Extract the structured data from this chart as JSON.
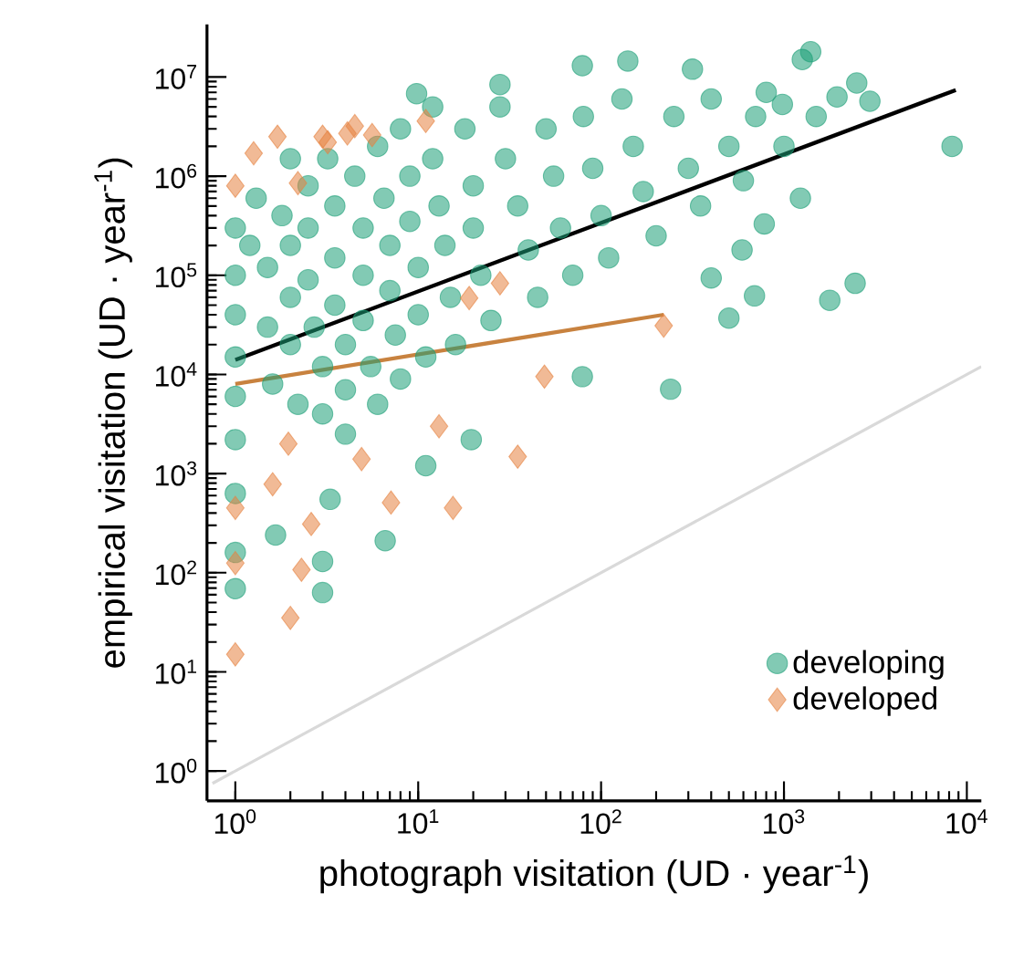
{
  "chart_data": {
    "type": "scatter",
    "xlabel": "photograph visitation (UD · year$^{-1}$)",
    "ylabel": "empirical visitation (UD · year$^{-1}$)",
    "log": "xy",
    "xlim": [
      0.7,
      12000
    ],
    "ylim": [
      0.5,
      34000000
    ],
    "xticks": [
      {
        "value": 1,
        "label": "10$^{0}$"
      },
      {
        "value": 10,
        "label": "10$^{1}$"
      },
      {
        "value": 100,
        "label": "10$^{2}$"
      },
      {
        "value": 1000,
        "label": "10$^{3}$"
      },
      {
        "value": 10000,
        "label": "10$^{4}$"
      }
    ],
    "yticks": [
      {
        "value": 1,
        "label": "10$^{0}$"
      },
      {
        "value": 10,
        "label": "10$^{1}$"
      },
      {
        "value": 100,
        "label": "10$^{2}$"
      },
      {
        "value": 1000,
        "label": "10$^{3}$"
      },
      {
        "value": 10000,
        "label": "10$^{4}$"
      },
      {
        "value": 100000,
        "label": "10$^{5}$"
      },
      {
        "value": 1000000,
        "label": "10$^{6}$"
      },
      {
        "value": 10000000,
        "label": "10$^{7}$"
      }
    ],
    "grid": false,
    "legend": "bottom right",
    "series": [
      {
        "type": "line",
        "color": "#d9d9d9",
        "marker": "none",
        "x": [
          0.75,
          12000
        ],
        "values": [
          0.75,
          12000
        ]
      },
      {
        "name": "developing",
        "color": "#1b9e77",
        "marker": "circle",
        "x": [
          79,
          140,
          1400,
          1260,
          8300,
          2500,
          1950,
          2950,
          2450,
          1780,
          690,
          500,
          240,
          28,
          9.8,
          1230,
          780,
          590,
          400,
          980,
          316,
          6.6,
          3,
          3,
          1,
          1,
          1.66,
          3.3,
          11,
          19.5,
          79,
          1,
          1,
          1,
          1,
          1,
          1,
          1,
          1.2,
          1.3,
          1.5,
          1.5,
          1.6,
          1.8,
          2,
          2,
          2,
          2,
          2.2,
          2.5,
          2.5,
          2.5,
          2.7,
          3,
          3,
          3.2,
          3.5,
          3.5,
          3.5,
          4,
          4,
          4,
          4.5,
          5,
          5,
          5,
          5.5,
          6,
          6,
          6.5,
          7,
          7,
          7.5,
          8,
          8,
          9,
          9,
          10,
          10,
          11,
          12,
          12,
          13,
          14,
          15,
          16,
          18,
          20,
          20,
          22,
          25,
          28,
          30,
          35,
          40,
          45,
          50,
          55,
          60,
          70,
          80,
          90,
          100,
          110,
          130,
          150,
          170,
          200,
          250,
          300,
          350,
          400,
          500,
          600,
          700,
          1000,
          1500,
          800
        ],
        "values": [
          13000000,
          14500000,
          18000000,
          15000000,
          2000000,
          8700000,
          6300000,
          5700000,
          83000,
          56000,
          62000,
          37000,
          7100,
          8400000,
          6800000,
          600000,
          330000,
          180000,
          94000,
          5300000,
          12000000,
          210,
          63,
          130,
          69,
          160,
          240,
          550,
          1200,
          2200,
          9500,
          630,
          2200,
          300000,
          100000,
          40000,
          15000,
          6000,
          200000,
          600000,
          120000,
          30000,
          8000,
          400000,
          1500000,
          200000,
          60000,
          20000,
          5000,
          800000,
          300000,
          90000,
          30000,
          12000,
          4000,
          1500000,
          500000,
          150000,
          50000,
          20000,
          7000,
          2500,
          1000000,
          300000,
          100000,
          35000,
          12000,
          5000,
          2000000,
          600000,
          200000,
          70000,
          25000,
          9000,
          3000000,
          1000000,
          350000,
          120000,
          40000,
          15000,
          5000000,
          1500000,
          500000,
          200000,
          60000,
          20000,
          3000000,
          800000,
          300000,
          100000,
          35000,
          5000000,
          1500000,
          500000,
          180000,
          60000,
          3000000,
          1000000,
          300000,
          100000,
          4000000,
          1200000,
          400000,
          150000,
          6000000,
          2000000,
          700000,
          250000,
          4000000,
          1200000,
          500000,
          6000000,
          2000000,
          900000,
          4000000,
          2000000,
          4000000,
          7000000
        ]
      },
      {
        "name": "developed",
        "color": "#e6823f",
        "marker": "diamond",
        "x": [
          1.26,
          1.7,
          3.0,
          3.2,
          4.1,
          4.5,
          5.6,
          11,
          2.2,
          1,
          28,
          220,
          49,
          19,
          13,
          35,
          4.9,
          7.1,
          15.5,
          1.6,
          1,
          2.6,
          1,
          2.3,
          2,
          1,
          1.95
        ],
        "values": [
          1700000,
          2500000,
          2500000,
          2200000,
          2700000,
          3200000,
          2600000,
          3600000,
          850000,
          800000,
          83000,
          31000,
          9500,
          59000,
          3000,
          1480,
          1400,
          510,
          450,
          780,
          450,
          310,
          125,
          107,
          35,
          15,
          2000
        ]
      },
      {
        "type": "line",
        "color": "#000000",
        "marker": "none",
        "x": [
          1,
          8700
        ],
        "values": [
          14000,
          7400000
        ]
      },
      {
        "type": "line",
        "color": "#c8823f",
        "marker": "none",
        "x": [
          1,
          220
        ],
        "values": [
          8000,
          40000
        ]
      }
    ]
  }
}
